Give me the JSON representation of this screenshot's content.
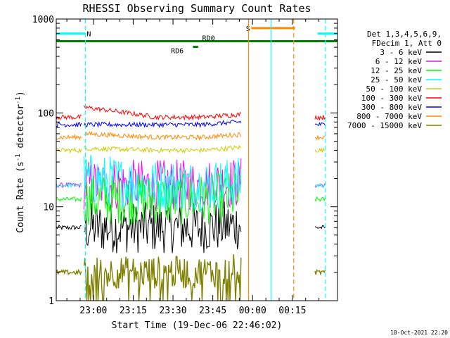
{
  "chart_data": {
    "type": "line",
    "title": "RHESSI Observing Summary Count Rates",
    "xlabel": "Start Time (19-Dec-06 22:46:02)",
    "ylabel_main": "Count Rate (s",
    "ylabel_sup1": "-1",
    "ylabel_mid": " detector",
    "ylabel_sup2": "-1",
    "ylabel_end": ")",
    "yscale": "log",
    "ylim": [
      1,
      1000
    ],
    "xlim_minutes": [
      -14,
      92
    ],
    "x_ticks": [
      {
        "m": 0,
        "label": "23:00"
      },
      {
        "m": 15,
        "label": "23:15"
      },
      {
        "m": 30,
        "label": "23:30"
      },
      {
        "m": 45,
        "label": "23:45"
      },
      {
        "m": 60,
        "label": "00:00"
      },
      {
        "m": 75,
        "label": "00:15"
      }
    ],
    "y_ticks": [
      {
        "v": 1,
        "label": "1"
      },
      {
        "v": 10,
        "label": "10"
      },
      {
        "v": 100,
        "label": "100"
      },
      {
        "v": 1000,
        "label": "1000"
      }
    ],
    "legend_header": [
      "Det 1,3,4,5,6,9,",
      "FDecim 1, Att 0"
    ],
    "series": [
      {
        "name": "3 - 6 keV",
        "color": "#000000",
        "base": 6,
        "seg1_peak": 6
      },
      {
        "name": "6 - 12 keV",
        "color": "#ff00ff",
        "base": 17,
        "seg1_peak": 17
      },
      {
        "name": "12 - 25 keV",
        "color": "#00ff00",
        "base": 12,
        "seg1_peak": 12
      },
      {
        "name": "25 - 50 keV",
        "color": "#00ffff",
        "base": 17,
        "seg1_peak": 20
      },
      {
        "name": "50 - 100 keV",
        "color": "#cccc00",
        "base": 40,
        "seg1_peak": 42
      },
      {
        "name": "100 - 300 keV",
        "color": "#ff0000",
        "base": 90,
        "seg1_peak": 115
      },
      {
        "name": "300 - 800 keV",
        "color": "#0000ff",
        "base": 75,
        "seg1_peak": 75
      },
      {
        "name": "800 - 7000 keV",
        "color": "#ff8800",
        "base": 55,
        "seg1_peak": 60
      },
      {
        "name": "7000 - 15000 keV",
        "color": "#808000",
        "base": 2,
        "seg1_peak": 2
      }
    ],
    "flag_bars": [
      {
        "label": "N",
        "color": "#00ffff",
        "from": -14,
        "to": -3,
        "value": 700
      },
      {
        "label": "",
        "color": "#00ffff",
        "from": 84.5,
        "to": 92,
        "value": 700
      },
      {
        "label": "S",
        "color": "#ff8800",
        "from": 59.5,
        "to": 76,
        "value": 800
      },
      {
        "label": "",
        "color": "#008000",
        "from": -14,
        "to": 92,
        "value": 580
      },
      {
        "label": "RD0",
        "color": "#008000",
        "from": 38,
        "to": 38,
        "value": 580
      },
      {
        "label": "RD6",
        "color": "#008000",
        "from": 37.5,
        "to": 39.5,
        "value": 505
      }
    ],
    "vertical_markers": [
      {
        "m": -3,
        "color": "#00ffff",
        "style": "dashed"
      },
      {
        "m": 58.5,
        "color": "#ff8800",
        "style": "solid"
      },
      {
        "m": 67,
        "color": "#00ffff",
        "style": "solid"
      },
      {
        "m": 75.5,
        "color": "#ff8800",
        "style": "dashed"
      },
      {
        "m": 87.5,
        "color": "#00ffff",
        "style": "dashed"
      }
    ],
    "data_segments": [
      [
        -14,
        -4.5
      ],
      [
        -3.5,
        56
      ],
      [
        83.5,
        87.5
      ]
    ],
    "grid": false,
    "legend_placement": "right",
    "timestamp": "18-Oct-2021 22:20"
  }
}
